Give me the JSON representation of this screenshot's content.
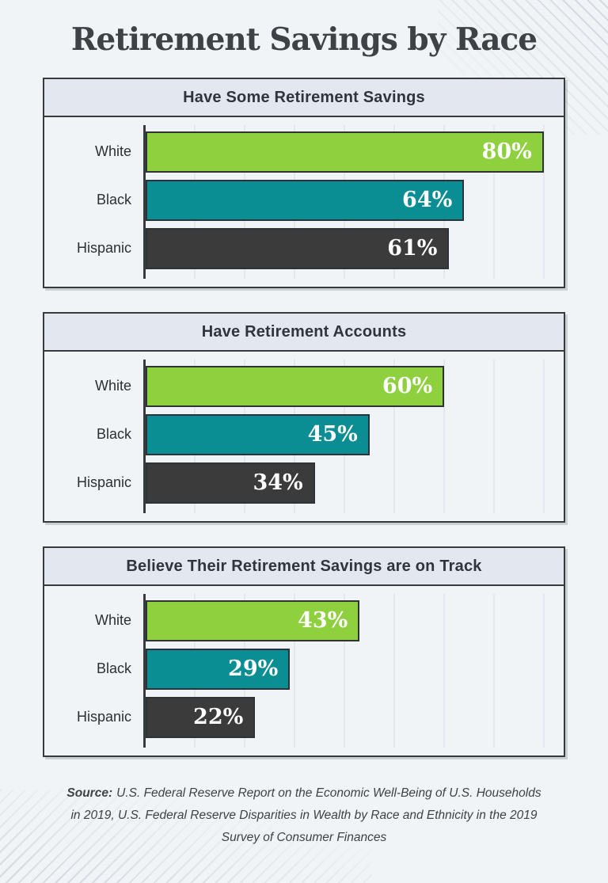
{
  "page": {
    "title": "Retirement Savings by Race",
    "background": "#f1f4f6"
  },
  "colors": {
    "green": "#8ed03e",
    "teal": "#0a8e93",
    "dark_gray": "#3b3b3b",
    "panel_header_bg": "#e2e8ee",
    "panel_border": "#363b40",
    "value_text": "#ffffff"
  },
  "chart_data": [
    {
      "type": "bar",
      "orientation": "horizontal",
      "title": "Have Some Retirement Savings",
      "categories": [
        "White",
        "Black",
        "Hispanic"
      ],
      "values": [
        80,
        64,
        61
      ],
      "value_labels": [
        "80%",
        "64%",
        "61%"
      ],
      "bar_colors": [
        "#8ed03e",
        "#0a8e93",
        "#3b3b3b"
      ],
      "xlim": [
        0,
        84
      ],
      "grid": "vertical",
      "legend": "none"
    },
    {
      "type": "bar",
      "orientation": "horizontal",
      "title": "Have Retirement Accounts",
      "categories": [
        "White",
        "Black",
        "Hispanic"
      ],
      "values": [
        60,
        45,
        34
      ],
      "value_labels": [
        "60%",
        "45%",
        "34%"
      ],
      "bar_colors": [
        "#8ed03e",
        "#0a8e93",
        "#3b3b3b"
      ],
      "xlim": [
        0,
        84
      ],
      "grid": "vertical",
      "legend": "none"
    },
    {
      "type": "bar",
      "orientation": "horizontal",
      "title": "Believe Their Retirement Savings are on Track",
      "categories": [
        "White",
        "Black",
        "Hispanic"
      ],
      "values": [
        43,
        29,
        22
      ],
      "value_labels": [
        "43%",
        "29%",
        "22%"
      ],
      "bar_colors": [
        "#8ed03e",
        "#0a8e93",
        "#3b3b3b"
      ],
      "xlim": [
        0,
        84
      ],
      "grid": "vertical",
      "legend": "none"
    }
  ],
  "source": {
    "label": "Source:",
    "text": "U.S. Federal Reserve Report on the Economic Well-Being of U.S. Households in 2019, U.S. Federal Reserve Disparities in Wealth by Race and Ethnicity in the 2019 Survey of Consumer Finances"
  }
}
